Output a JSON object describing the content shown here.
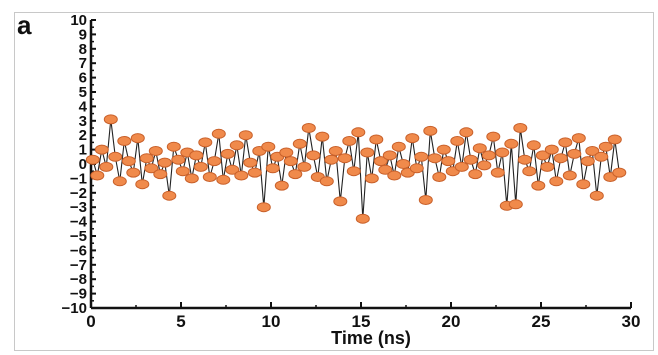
{
  "panel_label": "a",
  "chart_data": {
    "type": "line",
    "title": "",
    "xlabel": "Time (ns)",
    "ylabel": "",
    "xlim": [
      0,
      30
    ],
    "ylim": [
      -10,
      10
    ],
    "x_ticks": [
      0,
      5,
      10,
      15,
      20,
      25,
      30
    ],
    "y_ticks": [
      10,
      9,
      8,
      7,
      6,
      5,
      4,
      3,
      2,
      1,
      0,
      -1,
      -2,
      -3,
      -4,
      -5,
      -6,
      -7,
      -8,
      -9,
      -10
    ],
    "grid": false,
    "legend": "none",
    "line_color": "#222222",
    "marker_color": "#f08a4b",
    "marker_edge": "#c8602a",
    "series": [
      {
        "x": [
          0.1,
          0.35,
          0.6,
          0.85,
          1.1,
          1.35,
          1.6,
          1.85,
          2.1,
          2.35,
          2.6,
          2.85,
          3.1,
          3.35,
          3.6,
          3.85,
          4.1,
          4.35,
          4.6,
          4.85,
          5.1,
          5.35,
          5.6,
          5.85,
          6.1,
          6.35,
          6.6,
          6.85,
          7.1,
          7.35,
          7.6,
          7.85,
          8.1,
          8.35,
          8.6,
          8.85,
          9.1,
          9.35,
          9.6,
          9.85,
          10.1,
          10.35,
          10.6,
          10.85,
          11.1,
          11.35,
          11.6,
          11.85,
          12.1,
          12.35,
          12.6,
          12.85,
          13.1,
          13.35,
          13.6,
          13.85,
          14.1,
          14.35,
          14.6,
          14.85,
          15.1,
          15.35,
          15.6,
          15.85,
          16.1,
          16.35,
          16.6,
          16.85,
          17.1,
          17.35,
          17.6,
          17.85,
          18.1,
          18.35,
          18.6,
          18.85,
          19.1,
          19.35,
          19.6,
          19.85,
          20.1,
          20.35,
          20.6,
          20.85,
          21.1,
          21.35,
          21.6,
          21.85,
          22.1,
          22.35,
          22.6,
          22.85,
          23.1,
          23.35,
          23.6,
          23.85,
          24.1,
          24.35,
          24.6,
          24.85,
          25.1,
          25.35,
          25.6,
          25.85,
          26.1,
          26.35,
          26.6,
          26.85,
          27.1,
          27.35,
          27.6,
          27.85,
          28.1,
          28.35,
          28.6,
          28.85,
          29.1,
          29.35
        ],
        "y": [
          0.3,
          -0.8,
          1.0,
          -0.2,
          3.1,
          0.5,
          -1.2,
          1.6,
          0.2,
          -0.6,
          1.8,
          -1.4,
          0.4,
          -0.3,
          0.9,
          -0.7,
          0.1,
          -2.2,
          1.2,
          0.3,
          -0.5,
          0.8,
          -1.0,
          0.6,
          -0.2,
          1.5,
          -0.9,
          0.2,
          2.1,
          -1.1,
          0.7,
          -0.4,
          1.3,
          -0.8,
          2.0,
          0.1,
          -0.6,
          0.9,
          -3.0,
          1.2,
          -0.3,
          0.5,
          -1.5,
          0.8,
          0.2,
          -0.7,
          1.4,
          -0.2,
          2.5,
          0.6,
          -0.9,
          1.9,
          -1.2,
          0.3,
          0.9,
          -2.6,
          0.4,
          1.6,
          -0.5,
          2.2,
          -3.8,
          0.8,
          -1.0,
          1.7,
          0.2,
          -0.4,
          0.6,
          -0.8,
          1.2,
          0.0,
          -0.6,
          1.8,
          -0.3,
          0.5,
          -2.5,
          2.3,
          0.4,
          -0.9,
          1.0,
          0.2,
          -0.5,
          1.6,
          -0.2,
          2.2,
          0.3,
          -0.7,
          1.1,
          -0.1,
          0.6,
          1.9,
          -0.6,
          0.8,
          -2.9,
          1.4,
          -2.8,
          2.5,
          0.3,
          -0.5,
          1.3,
          -1.5,
          0.6,
          -0.2,
          1.0,
          -1.2,
          0.4,
          1.5,
          -0.8,
          0.7,
          1.8,
          -1.4,
          0.2,
          0.9,
          -2.2,
          0.5,
          1.2,
          -0.9,
          1.7,
          -0.6
        ]
      }
    ]
  }
}
